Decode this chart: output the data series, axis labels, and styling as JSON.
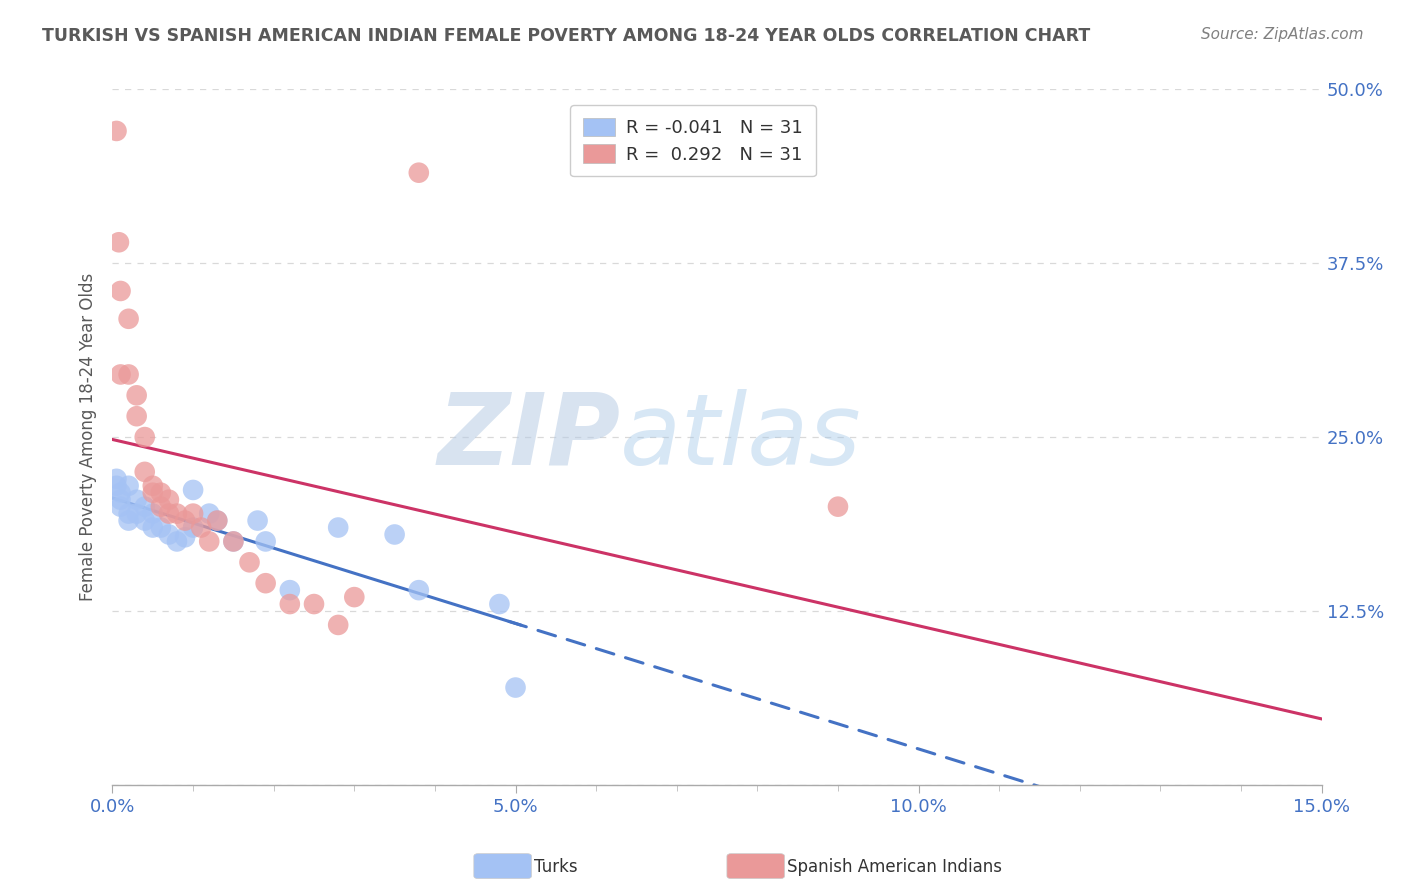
{
  "title": "TURKISH VS SPANISH AMERICAN INDIAN FEMALE POVERTY AMONG 18-24 YEAR OLDS CORRELATION CHART",
  "source": "Source: ZipAtlas.com",
  "ylabel": "Female Poverty Among 18-24 Year Olds",
  "xlim": [
    0.0,
    0.15
  ],
  "ylim": [
    0.0,
    0.5
  ],
  "turks_x": [
    0.0005,
    0.0005,
    0.001,
    0.001,
    0.001,
    0.002,
    0.002,
    0.002,
    0.003,
    0.003,
    0.004,
    0.004,
    0.005,
    0.005,
    0.006,
    0.007,
    0.008,
    0.009,
    0.01,
    0.01,
    0.012,
    0.013,
    0.015,
    0.018,
    0.019,
    0.022,
    0.028,
    0.035,
    0.038,
    0.048,
    0.05
  ],
  "turks_y": [
    0.22,
    0.215,
    0.21,
    0.205,
    0.2,
    0.215,
    0.195,
    0.19,
    0.205,
    0.195,
    0.2,
    0.19,
    0.195,
    0.185,
    0.185,
    0.18,
    0.175,
    0.178,
    0.212,
    0.185,
    0.195,
    0.19,
    0.175,
    0.19,
    0.175,
    0.14,
    0.185,
    0.18,
    0.14,
    0.13,
    0.07
  ],
  "spanish_x": [
    0.0005,
    0.0008,
    0.001,
    0.001,
    0.002,
    0.002,
    0.003,
    0.003,
    0.004,
    0.004,
    0.005,
    0.005,
    0.006,
    0.006,
    0.007,
    0.007,
    0.008,
    0.009,
    0.01,
    0.011,
    0.012,
    0.013,
    0.015,
    0.017,
    0.019,
    0.022,
    0.025,
    0.028,
    0.03,
    0.038,
    0.09
  ],
  "spanish_y": [
    0.47,
    0.39,
    0.355,
    0.295,
    0.335,
    0.295,
    0.28,
    0.265,
    0.25,
    0.225,
    0.215,
    0.21,
    0.21,
    0.2,
    0.205,
    0.195,
    0.195,
    0.19,
    0.195,
    0.185,
    0.175,
    0.19,
    0.175,
    0.16,
    0.145,
    0.13,
    0.13,
    0.115,
    0.135,
    0.44,
    0.2
  ],
  "turks_R": -0.041,
  "turks_N": 31,
  "spanish_R": 0.292,
  "spanish_N": 31,
  "turks_color": "#a4c2f4",
  "spanish_color": "#ea9999",
  "turks_line_color": "#4472c4",
  "spanish_line_color": "#cc3366",
  "background_color": "#ffffff",
  "grid_color": "#d9d9d9",
  "watermark_zip": "ZIP",
  "watermark_atlas": "atlas",
  "legend_label_turks": "Turks",
  "legend_label_spanish": "Spanish American Indians",
  "tick_color": "#4472c4",
  "title_color": "#595959",
  "source_color": "#808080"
}
